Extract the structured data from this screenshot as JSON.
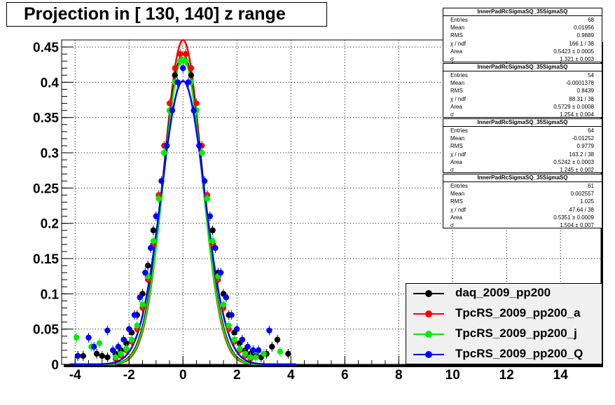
{
  "title": "Projection in [ 130, 140] z range",
  "stats_boxes": [
    {
      "title": "InnerPadRcSigmaSQ_35SigmaSQ",
      "rows": [
        {
          "k": "Entries",
          "v": "68"
        },
        {
          "k": "Mean",
          "v": "0.01956"
        },
        {
          "k": "RMS",
          "v": "0.9889"
        },
        {
          "k": "χ  / ndf",
          "v": "166.1 / 38"
        },
        {
          "k": "Area",
          "v": "0.5423 ± 0.0005"
        },
        {
          "k": "σ",
          "v": "1.321 ± 0.003"
        }
      ]
    },
    {
      "title": "InnerPadRcSigmaSQ_35SigmaSQ",
      "rows": [
        {
          "k": "Entries",
          "v": "54"
        },
        {
          "k": "Mean",
          "v": "-0.0001378"
        },
        {
          "k": "RMS",
          "v": "0.8439"
        },
        {
          "k": "χ  / ndf",
          "v": "88.31 / 38"
        },
        {
          "k": "Area",
          "v": "0.5729 ± 0.0008"
        },
        {
          "k": "σ",
          "v": "1.254 ± 0.004"
        }
      ]
    },
    {
      "title": "InnerPadRcSigmaSQ_35SigmaSQ",
      "rows": [
        {
          "k": "Entries",
          "v": "64"
        },
        {
          "k": "Mean",
          "v": "-0.01252"
        },
        {
          "k": "RMS",
          "v": "0.9779"
        },
        {
          "k": "χ  / ndf",
          "v": "163.2 / 38"
        },
        {
          "k": "Area",
          "v": "0.5242 ± 0.0003"
        },
        {
          "k": "σ",
          "v": "1.245 ± 0.002"
        }
      ]
    },
    {
      "title": "InnerPadRcSigmaSQ_35SigmaSQ",
      "rows": [
        {
          "k": "Entries",
          "v": "61"
        },
        {
          "k": "Mean",
          "v": "0.002557"
        },
        {
          "k": "RMS",
          "v": "1.025"
        },
        {
          "k": "χ  / ndf",
          "v": "47.64 / 38"
        },
        {
          "k": "Area",
          "v": "0.5351 ± 0.0009"
        },
        {
          "k": "σ",
          "v": "1.504 ± 0.007"
        }
      ]
    }
  ],
  "legend": [
    {
      "label": "daq_2009_pp200",
      "color": "#000000"
    },
    {
      "label": "TpcRS_2009_pp200_a",
      "color": "#ff0000"
    },
    {
      "label": "TpcRS_2009_pp200_j",
      "color": "#00ee00"
    },
    {
      "label": "TpcRS_2009_pp200_Q",
      "color": "#0000ff"
    }
  ],
  "chart_data": {
    "type": "scatter",
    "title": "Projection in [ 130, 140] z range",
    "xlim": [
      -4.5,
      15.5
    ],
    "ylim": [
      0,
      0.46
    ],
    "x_ticks": [
      -4,
      -2,
      0,
      2,
      4,
      6,
      8,
      10,
      12,
      14
    ],
    "y_ticks": [
      0,
      0.05,
      0.1,
      0.15,
      0.2,
      0.25,
      0.3,
      0.35,
      0.4,
      0.45
    ],
    "x_tick_labels": [
      "-4",
      "-2",
      "0",
      "2",
      "4",
      "6",
      "8",
      "10",
      "12",
      "14"
    ],
    "y_tick_labels": [
      "0",
      "0.05",
      "0.1",
      "0.15",
      "0.2",
      "0.25",
      "0.3",
      "0.35",
      "0.4",
      "0.45"
    ],
    "grid": true,
    "legend_position": "bottom-right",
    "series": [
      {
        "name": "daq_2009_pp200",
        "color": "#000000",
        "x": [
          -3.9,
          -3.7,
          -3.2,
          -3.0,
          -2.8,
          -2.5,
          -2.3,
          -2.1,
          -1.9,
          -1.7,
          -1.5,
          -1.3,
          -1.1,
          -0.9,
          -0.7,
          -0.5,
          -0.3,
          -0.1,
          0.1,
          0.3,
          0.5,
          0.7,
          0.9,
          1.1,
          1.3,
          1.5,
          1.7,
          1.9,
          2.1,
          2.3,
          2.5,
          2.7,
          2.9,
          3.1,
          3.3,
          3.5,
          3.9
        ],
        "y": [
          0.012,
          0.012,
          0.015,
          0.012,
          0.01,
          0.015,
          0.02,
          0.03,
          0.045,
          0.07,
          0.1,
          0.14,
          0.19,
          0.24,
          0.3,
          0.36,
          0.41,
          0.43,
          0.43,
          0.41,
          0.36,
          0.3,
          0.24,
          0.19,
          0.13,
          0.1,
          0.07,
          0.045,
          0.03,
          0.02,
          0.015,
          0.012,
          0.01,
          0.015,
          0.025,
          0.035,
          0.015
        ]
      },
      {
        "name": "TpcRS_2009_pp200_a",
        "color": "#ff0000",
        "x": [
          -2.5,
          -2.3,
          -2.1,
          -1.9,
          -1.7,
          -1.5,
          -1.3,
          -1.1,
          -0.9,
          -0.7,
          -0.5,
          -0.3,
          -0.1,
          0.1,
          0.3,
          0.5,
          0.7,
          0.9,
          1.1,
          1.3,
          1.5,
          1.7,
          1.9,
          2.1,
          2.3,
          2.5
        ],
        "y": [
          0.008,
          0.012,
          0.02,
          0.032,
          0.05,
          0.08,
          0.12,
          0.17,
          0.24,
          0.31,
          0.37,
          0.42,
          0.44,
          0.44,
          0.42,
          0.37,
          0.31,
          0.24,
          0.17,
          0.12,
          0.08,
          0.05,
          0.032,
          0.02,
          0.012,
          0.008
        ]
      },
      {
        "name": "TpcRS_2009_pp200_j",
        "color": "#00ee00",
        "x": [
          -3.95,
          -3.4,
          -3.1,
          -2.5,
          -2.3,
          -2.1,
          -1.9,
          -1.7,
          -1.5,
          -1.3,
          -1.1,
          -0.9,
          -0.7,
          -0.5,
          -0.3,
          -0.1,
          0.1,
          0.3,
          0.5,
          0.7,
          0.9,
          1.1,
          1.3,
          1.5,
          1.7,
          1.9,
          2.1,
          2.3,
          2.5,
          2.7,
          3.0,
          3.6
        ],
        "y": [
          0.038,
          0.025,
          0.03,
          0.01,
          0.015,
          0.022,
          0.035,
          0.055,
          0.085,
          0.125,
          0.175,
          0.235,
          0.3,
          0.36,
          0.4,
          0.43,
          0.43,
          0.4,
          0.36,
          0.3,
          0.235,
          0.175,
          0.125,
          0.085,
          0.055,
          0.035,
          0.022,
          0.015,
          0.01,
          0.01,
          0.015,
          0.018
        ]
      },
      {
        "name": "TpcRS_2009_pp200_Q",
        "color": "#0000ff",
        "x": [
          -3.9,
          -3.5,
          -3.3,
          -2.8,
          -2.6,
          -2.4,
          -2.2,
          -2.0,
          -1.8,
          -1.6,
          -1.4,
          -1.2,
          -1.0,
          -0.8,
          -0.6,
          -0.4,
          -0.2,
          0.0,
          0.2,
          0.4,
          0.6,
          0.8,
          1.0,
          1.2,
          1.4,
          1.6,
          1.8,
          2.0,
          2.2,
          2.4,
          2.6,
          2.8,
          3.2
        ],
        "y": [
          0.012,
          0.038,
          0.025,
          0.048,
          0.02,
          0.025,
          0.035,
          0.05,
          0.07,
          0.095,
          0.13,
          0.165,
          0.21,
          0.26,
          0.31,
          0.36,
          0.4,
          0.42,
          0.4,
          0.36,
          0.31,
          0.26,
          0.21,
          0.165,
          0.13,
          0.095,
          0.07,
          0.05,
          0.035,
          0.025,
          0.02,
          0.02,
          0.048
        ]
      }
    ],
    "fits": [
      {
        "name": "TpcRS_2009_pp200_a",
        "color": "#ff0000",
        "amplitude": 0.46,
        "sigma": 0.7
      },
      {
        "name": "daq_2009_pp200",
        "color": "#000000",
        "amplitude": 0.44,
        "sigma": 0.73
      },
      {
        "name": "TpcRS_2009_pp200_j",
        "color": "#00ee00",
        "amplitude": 0.435,
        "sigma": 0.72
      },
      {
        "name": "TpcRS_2009_pp200_Q",
        "color": "#0000ff",
        "amplitude": 0.402,
        "sigma": 0.8
      }
    ]
  }
}
